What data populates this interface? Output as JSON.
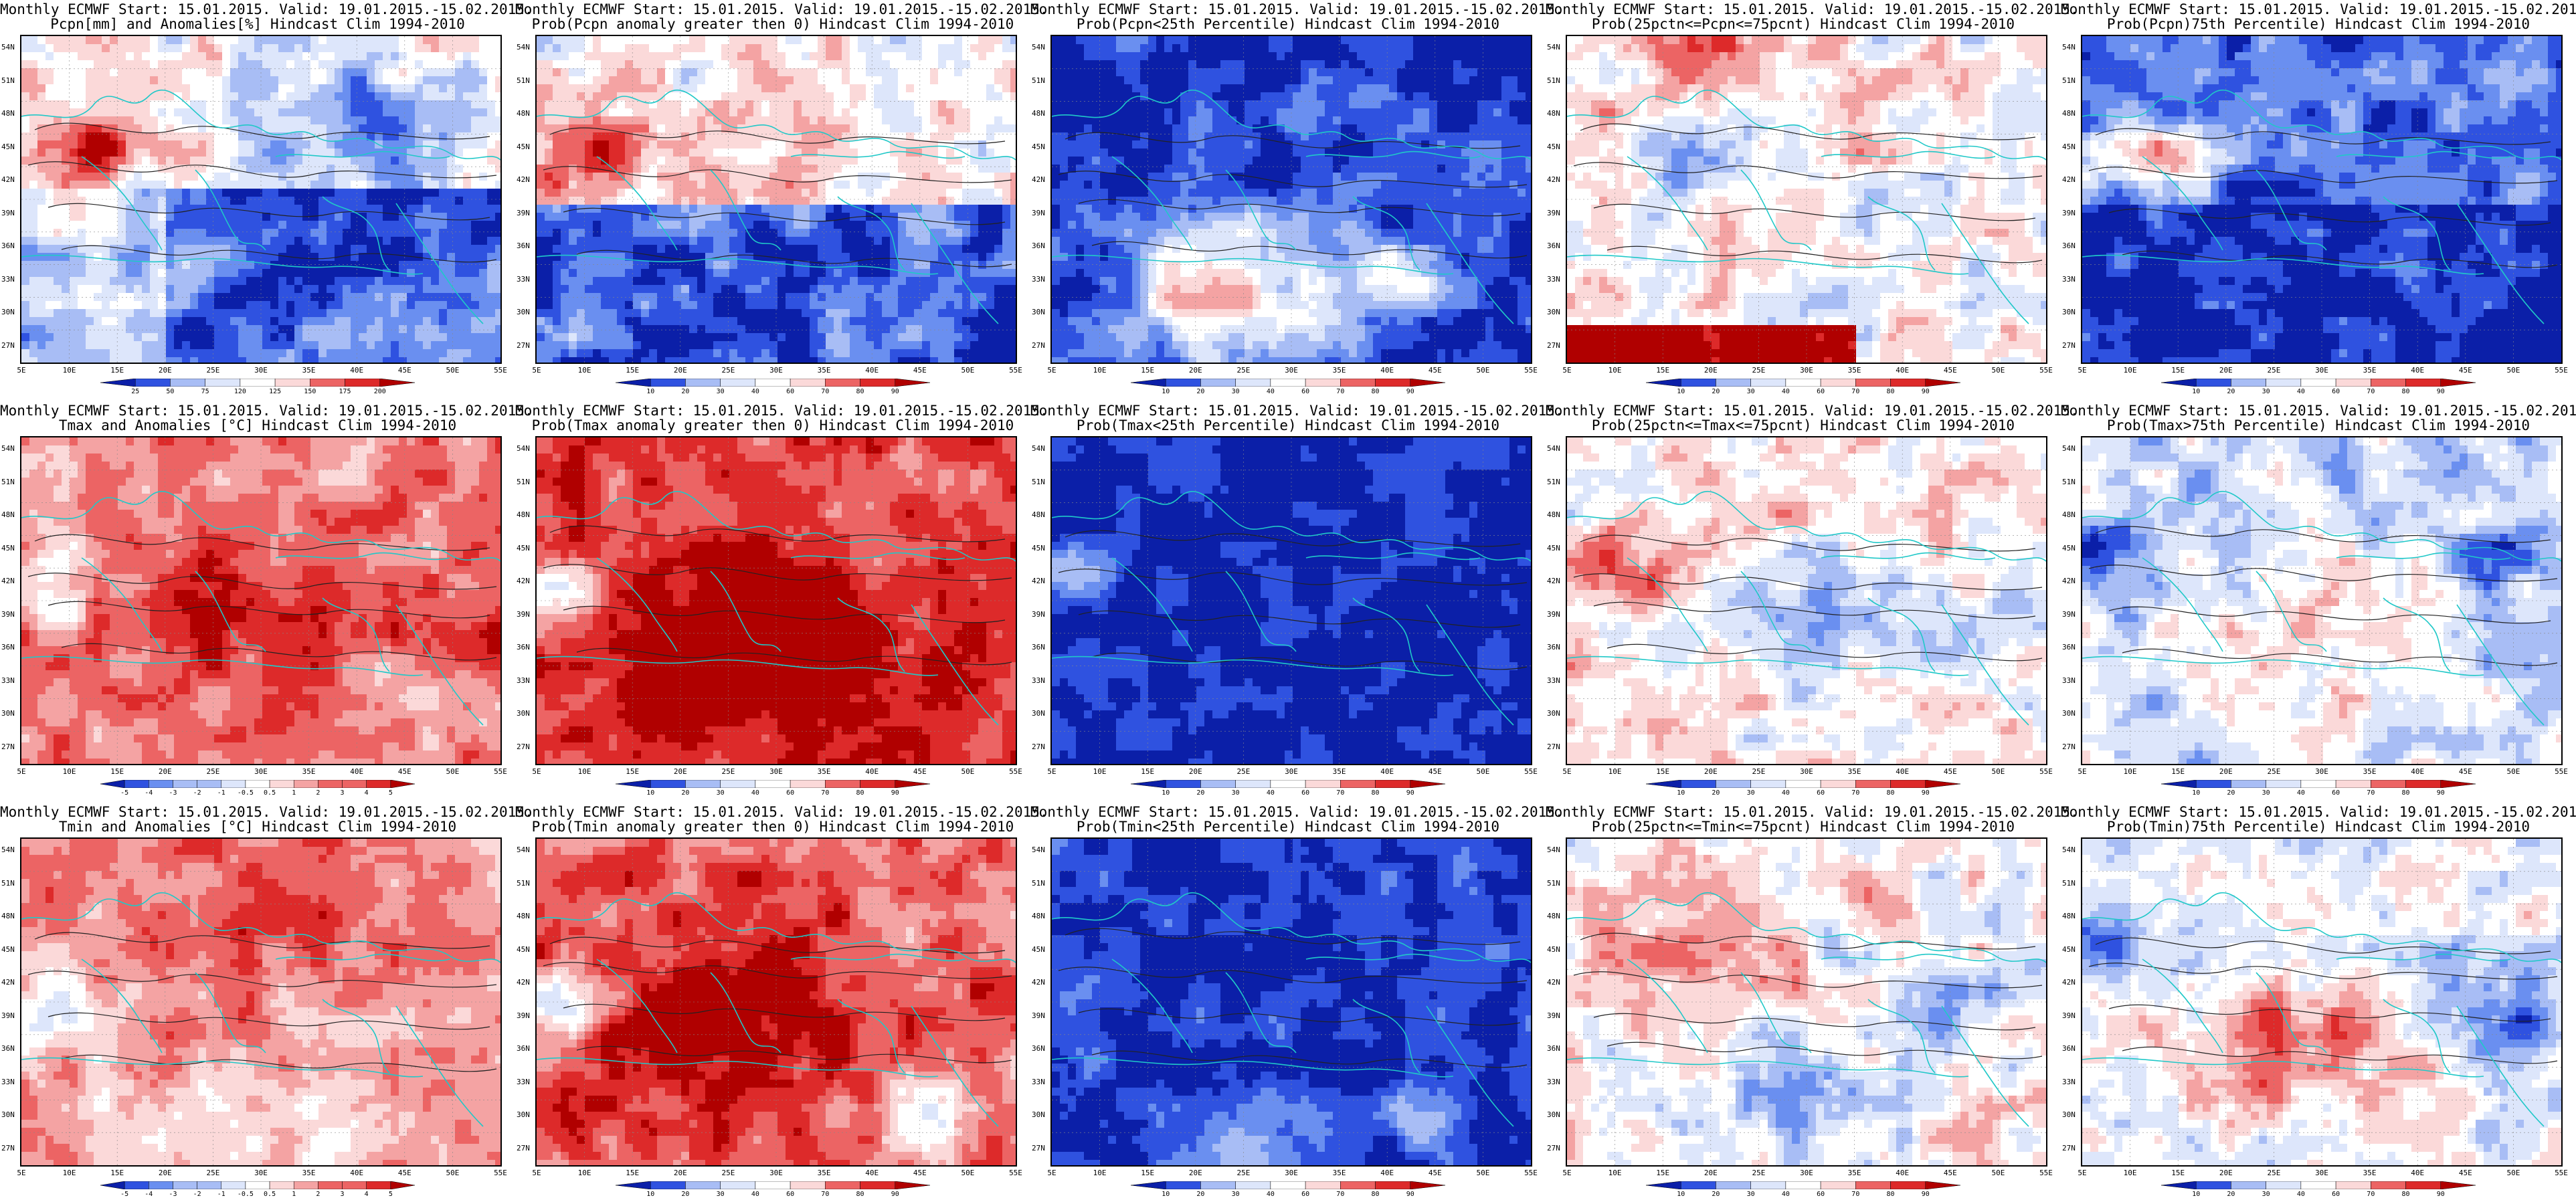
{
  "figure": {
    "panels": [
      {
        "title1": "Monthly ECMWF Start: 15.01.2015. Valid: 19.01.2015.-15.02.2015.",
        "title2": "Pcpn[mm] and Anomalies[%] Hindcast Clim 1994-2010",
        "scale": "anom",
        "cbar_labels": [
          "25",
          "50",
          "75",
          "120",
          "125",
          "150",
          "175",
          "200"
        ],
        "field": "pcpn_anom"
      },
      {
        "title1": "Monthly ECMWF Start: 15.01.2015. Valid: 19.01.2015.-15.02.2015.",
        "title2": "Prob(Pcpn anomaly greater then 0) Hindcast Clim 1994-2010",
        "scale": "prob",
        "cbar_labels": [
          "10",
          "20",
          "30",
          "40",
          "60",
          "70",
          "80",
          "90"
        ],
        "field": "pcpn_gt0"
      },
      {
        "title1": "Monthly ECMWF Start: 15.01.2015. Valid: 19.01.2015.-15.02.2015.",
        "title2": "Prob(Pcpn<25th Percentile) Hindcast Clim 1994-2010",
        "scale": "prob",
        "cbar_labels": [
          "10",
          "20",
          "30",
          "40",
          "60",
          "70",
          "80",
          "90"
        ],
        "field": "pcpn_lt25"
      },
      {
        "title1": "Monthly ECMWF Start: 15.01.2015. Valid: 19.01.2015.-15.02.2015.",
        "title2": "Prob(25pctn<=Pcpn<=75pcnt) Hindcast Clim 1994-2010",
        "scale": "prob",
        "cbar_labels": [
          "10",
          "20",
          "30",
          "40",
          "60",
          "70",
          "80",
          "90"
        ],
        "field": "pcpn_mid"
      },
      {
        "title1": "Monthly ECMWF Start: 15.01.2015. Valid: 19.01.2015.-15.02.2015.",
        "title2": "Prob(Pcpn)75th Percentile) Hindcast Clim 1994-2010",
        "scale": "prob",
        "cbar_labels": [
          "10",
          "20",
          "30",
          "40",
          "60",
          "70",
          "80",
          "90"
        ],
        "field": "pcpn_gt75"
      },
      {
        "title1": "Monthly ECMWF Start: 15.01.2015. Valid: 19.01.2015.-15.02.2015.",
        "title2": "Tmax and Anomalies [°C] Hindcast Clim 1994-2010",
        "scale": "temp",
        "cbar_labels": [
          "-5",
          "-4",
          "-3",
          "-2",
          "-1",
          "-0.5",
          "0.5",
          "1",
          "2",
          "3",
          "4",
          "5"
        ],
        "field": "tmax_anom"
      },
      {
        "title1": "Monthly ECMWF Start: 15.01.2015. Valid: 19.01.2015.-15.02.2015.",
        "title2": "Prob(Tmax anomaly greater then 0) Hindcast Clim 1994-2010",
        "scale": "prob",
        "cbar_labels": [
          "10",
          "20",
          "30",
          "40",
          "60",
          "70",
          "80",
          "90"
        ],
        "field": "tmax_gt0"
      },
      {
        "title1": "Monthly ECMWF Start: 15.01.2015. Valid: 19.01.2015.-15.02.2015.",
        "title2": "Prob(Tmax<25th Percentile) Hindcast Clim 1994-2010",
        "scale": "prob",
        "cbar_labels": [
          "10",
          "20",
          "30",
          "40",
          "60",
          "70",
          "80",
          "90"
        ],
        "field": "tmax_lt25"
      },
      {
        "title1": "Monthly ECMWF Start: 15.01.2015. Valid: 19.01.2015.-15.02.2015.",
        "title2": "Prob(25pctn<=Tmax<=75pcnt) Hindcast Clim 1994-2010",
        "scale": "prob",
        "cbar_labels": [
          "10",
          "20",
          "30",
          "40",
          "60",
          "70",
          "80",
          "90"
        ],
        "field": "tmax_mid"
      },
      {
        "title1": "Monthly ECMWF Start: 15.01.2015. Valid: 19.01.2015.-15.02.2015.",
        "title2": "Prob(Tmax>75th Percentile) Hindcast Clim 1994-2010",
        "scale": "prob",
        "cbar_labels": [
          "10",
          "20",
          "30",
          "40",
          "60",
          "70",
          "80",
          "90"
        ],
        "field": "tmax_gt75"
      },
      {
        "title1": "Monthly ECMWF Start: 15.01.2015. Valid: 19.01.2015.-15.02.2015.",
        "title2": "Tmin and Anomalies [°C] Hindcast Clim 1994-2010",
        "scale": "temp",
        "cbar_labels": [
          "-5",
          "-4",
          "-3",
          "-2",
          "-1",
          "-0.5",
          "0.5",
          "1",
          "2",
          "3",
          "4",
          "5"
        ],
        "field": "tmin_anom"
      },
      {
        "title1": "Monthly ECMWF Start: 15.01.2015. Valid: 19.01.2015.-15.02.2015.",
        "title2": "Prob(Tmin anomaly greater then 0) Hindcast Clim 1994-2010",
        "scale": "prob",
        "cbar_labels": [
          "10",
          "20",
          "30",
          "40",
          "60",
          "70",
          "80",
          "90"
        ],
        "field": "tmin_gt0"
      },
      {
        "title1": "Monthly ECMWF Start: 15.01.2015. Valid: 19.01.2015.-15.02.2015.",
        "title2": "Prob(Tmin<25th Percentile) Hindcast Clim 1994-2010",
        "scale": "prob",
        "cbar_labels": [
          "10",
          "20",
          "30",
          "40",
          "60",
          "70",
          "80",
          "90"
        ],
        "field": "tmin_lt25"
      },
      {
        "title1": "Monthly ECMWF Start: 15.01.2015. Valid: 19.01.2015.-15.02.2015.",
        "title2": "Prob(25pctn<=Tmin<=75pcnt) Hindcast Clim 1994-2010",
        "scale": "prob",
        "cbar_labels": [
          "10",
          "20",
          "30",
          "40",
          "60",
          "70",
          "80",
          "90"
        ],
        "field": "tmin_mid"
      },
      {
        "title1": "Monthly ECMWF Start: 15.01.2015. Valid: 19.01.2015.-15.02.2015.",
        "title2": "Prob(Tmin)75th Percentile) Hindcast Clim 1994-2010",
        "scale": "prob",
        "cbar_labels": [
          "10",
          "20",
          "30",
          "40",
          "60",
          "70",
          "80",
          "90"
        ],
        "field": "tmin_gt75"
      }
    ],
    "lat_labels": [
      "54N",
      "51N",
      "48N",
      "45N",
      "42N",
      "39N",
      "36N",
      "33N",
      "30N",
      "27N"
    ],
    "lon_labels": [
      "5E",
      "10E",
      "15E",
      "20E",
      "25E",
      "30E",
      "35E",
      "40E",
      "45E",
      "50E",
      "55E"
    ],
    "lat_range": [
      25.5,
      55.5
    ],
    "lon_range": [
      5,
      55
    ],
    "palette_colors": [
      "#0b1fa8",
      "#2f52e0",
      "#6a8ff0",
      "#a8bdf5",
      "#dde6fb",
      "#ffffff",
      "#fbd9d9",
      "#f4a3a3",
      "#ec6464",
      "#dd2a2a",
      "#b00000"
    ]
  }
}
